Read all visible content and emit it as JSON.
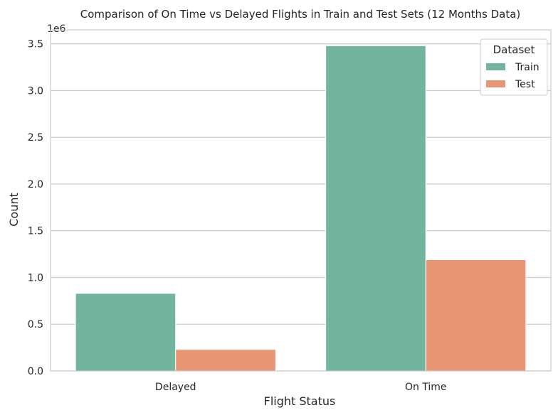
{
  "chart_data": {
    "type": "bar",
    "title": "Comparison of On Time vs Delayed Flights in Train and Test Sets (12 Months Data)",
    "xlabel": "Flight Status",
    "ylabel": "Count",
    "y_multiplier_label": "1e6",
    "categories": [
      "Delayed",
      "On Time"
    ],
    "series": [
      {
        "name": "Train",
        "color": "#72b59f",
        "values": [
          830000,
          3480000
        ]
      },
      {
        "name": "Test",
        "color": "#e89673",
        "values": [
          230000,
          1190000
        ]
      }
    ],
    "ylim": [
      0,
      3650000
    ],
    "yticks": [
      {
        "value": 0,
        "label": "0.0"
      },
      {
        "value": 500000,
        "label": "0.5"
      },
      {
        "value": 1000000,
        "label": "1.0"
      },
      {
        "value": 1500000,
        "label": "1.5"
      },
      {
        "value": 2000000,
        "label": "2.0"
      },
      {
        "value": 2500000,
        "label": "2.5"
      },
      {
        "value": 3000000,
        "label": "3.0"
      },
      {
        "value": 3500000,
        "label": "3.5"
      }
    ],
    "grid": "horizontal",
    "legend": {
      "title": "Dataset",
      "placement": "top-right"
    }
  }
}
